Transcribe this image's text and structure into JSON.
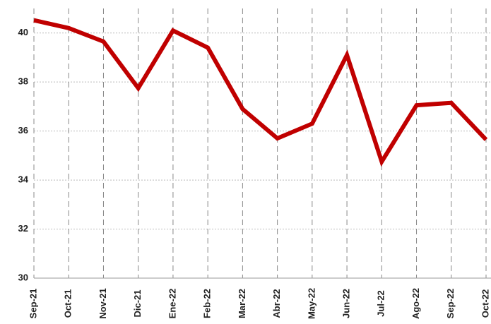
{
  "chart_data": {
    "type": "line",
    "categories": [
      "Sep-21",
      "Oct-21",
      "Nov-21",
      "Dic-21",
      "Ene-22",
      "Feb-22",
      "Mar-22",
      "Abr-22",
      "May-22",
      "Jun-22",
      "Jul-22",
      "Ago-22",
      "Sep-22",
      "Oct-22"
    ],
    "series": [
      {
        "color": "#c00000",
        "values": [
          40.52,
          40.2,
          39.65,
          37.75,
          40.1,
          39.4,
          36.9,
          35.7,
          36.3,
          39.1,
          34.75,
          37.05,
          37.15,
          35.65
        ]
      }
    ],
    "ylim": [
      30,
      41
    ],
    "yticks": [
      30,
      32,
      34,
      36,
      38,
      40
    ],
    "grid": true
  }
}
